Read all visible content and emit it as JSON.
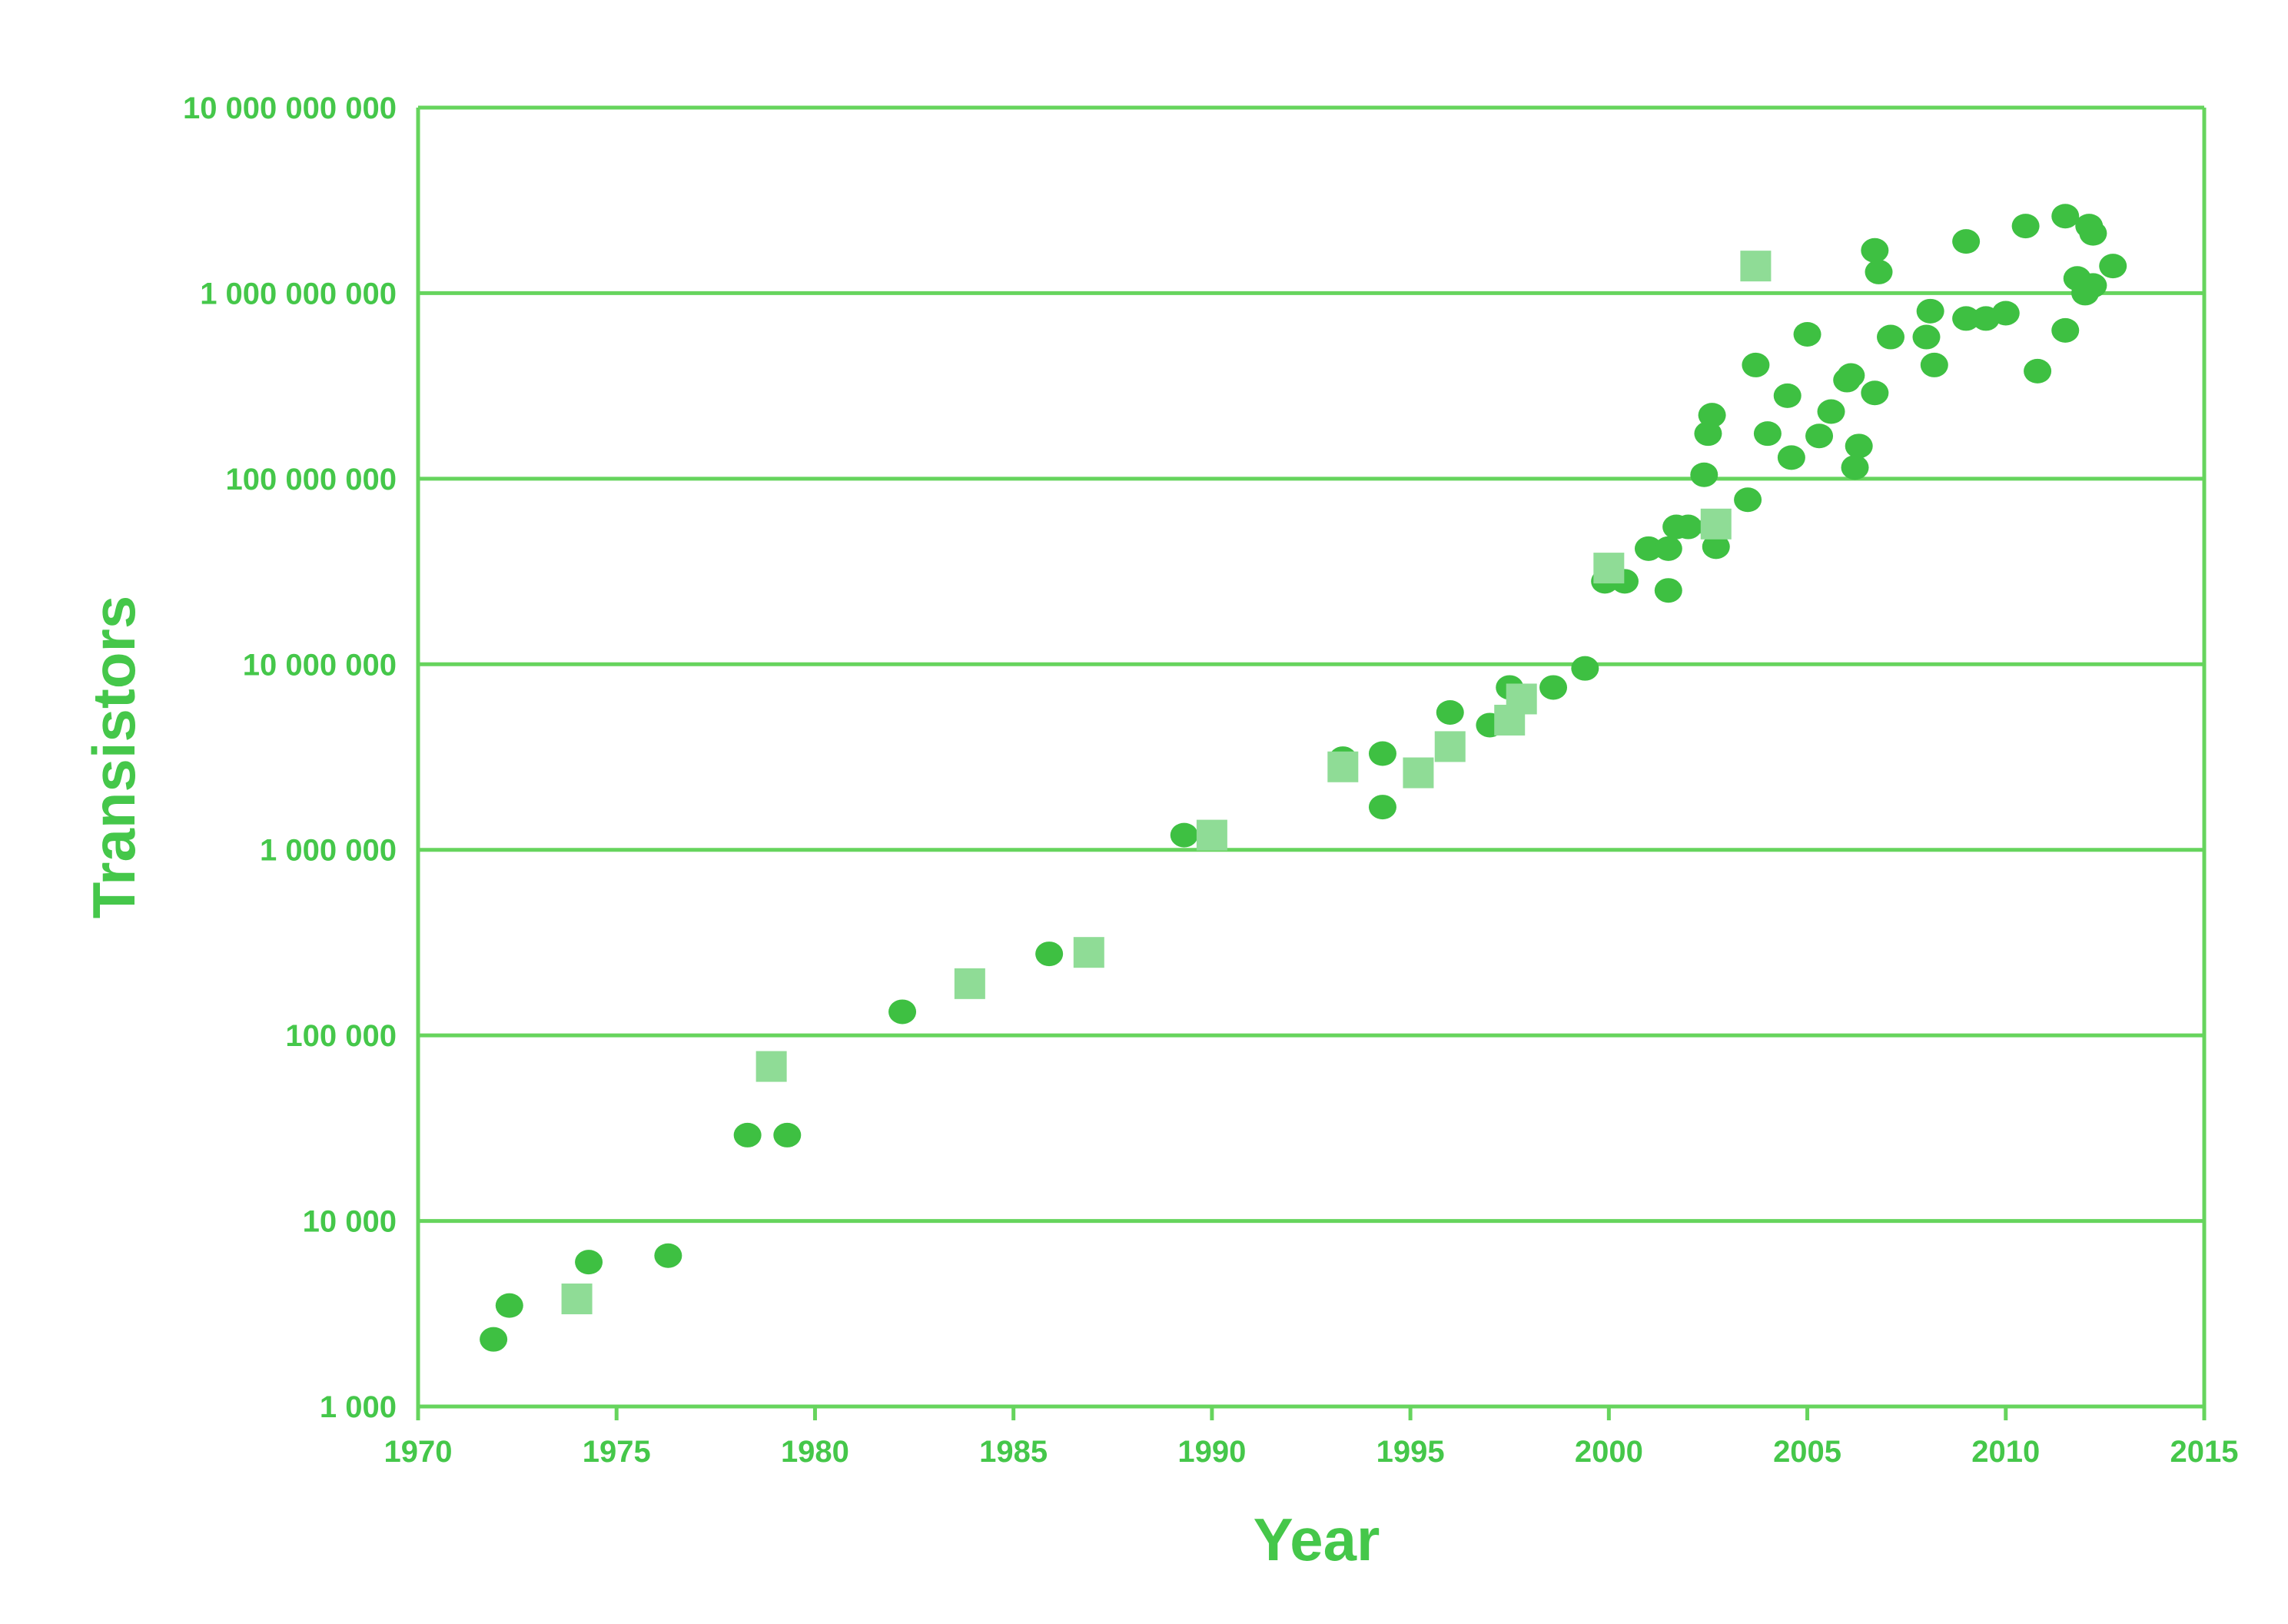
{
  "chart_data": {
    "type": "scatter",
    "title": "",
    "xlabel": "Year",
    "ylabel": "Transistors",
    "y_scale": "log",
    "xlim": [
      1970,
      2015
    ],
    "ylim": [
      1000,
      10000000000
    ],
    "grid": "horizontal",
    "legend": "none",
    "x_ticks": [
      "1970",
      "1975",
      "1980",
      "1985",
      "1990",
      "1995",
      "2000",
      "2005",
      "2010",
      "2015"
    ],
    "y_ticks": [
      "1 000",
      "10 000",
      "100 000",
      "1 000 000",
      "10 000 000",
      "100 000 000",
      "1 000 000 000",
      "10 000 000 000"
    ],
    "colors": {
      "axis": "#66d45d",
      "circle": "#3ec042",
      "square": "#8fdc96",
      "text": "#45c74a"
    },
    "series": [
      {
        "marker": "circle",
        "x": [
          1971.9,
          1972.3,
          1974.3,
          1976.3,
          1978.3,
          1979.3,
          1982.2,
          1985.9,
          1989.3,
          1993.3,
          1994.3,
          1994.3,
          1996.0,
          1997.0,
          1997.5,
          1998.6,
          1999.4,
          1999.9,
          2000.4,
          2001.0,
          2001.5,
          2001.5,
          2001.7,
          2002.0,
          2002.4,
          2002.5,
          2002.6,
          2002.7,
          2002.6,
          2003.5,
          2003.7,
          2004.0,
          2004.5,
          2004.6,
          2005.0,
          2005.3,
          2005.6,
          2006.0,
          2006.1,
          2006.2,
          2006.3,
          2006.7,
          2006.7,
          2006.8,
          2007.1,
          2008.0,
          2008.1,
          2008.2,
          2009.0,
          2009.0,
          2009.5,
          2010.0,
          2010.5,
          2010.8,
          2011.5,
          2011.5,
          2011.8,
          2012.0,
          2012.1,
          2012.2,
          2012.2,
          2012.7
        ],
        "y": [
          2300,
          3500,
          6000,
          6500,
          29000,
          29000,
          134000,
          275000,
          1200000,
          3100000,
          3300000,
          1700000,
          5500000,
          4700000,
          7500000,
          7500000,
          9500000,
          28000000,
          28000000,
          42000000,
          42000000,
          25000000,
          55000000,
          55000000,
          105000000,
          175000000,
          220000000,
          43000000,
          55000000,
          77000000,
          410000000,
          175000000,
          280000000,
          130000000,
          600000000,
          170000000,
          230000000,
          340000000,
          360000000,
          115000000,
          150000000,
          290000000,
          1700000000,
          1300000000,
          580000000,
          580000000,
          800000000,
          410000000,
          730000000,
          1900000000,
          730000000,
          780000000,
          2300000000,
          380000000,
          2600000000,
          630000000,
          1200000000,
          1000000000,
          2300000000,
          2100000000,
          1100000000,
          1400000000
        ]
      },
      {
        "marker": "square",
        "x": [
          1974.0,
          1978.9,
          1983.9,
          1986.9,
          1990.0,
          1993.3,
          1995.2,
          1996.0,
          1997.5,
          1997.8,
          2000.0,
          2002.7,
          2003.7
        ],
        "y": [
          3800,
          68000,
          190000,
          280000,
          1200000,
          2800000,
          2600000,
          3600000,
          5000000,
          6500000,
          33000000,
          57000000,
          1400000000
        ]
      }
    ]
  }
}
